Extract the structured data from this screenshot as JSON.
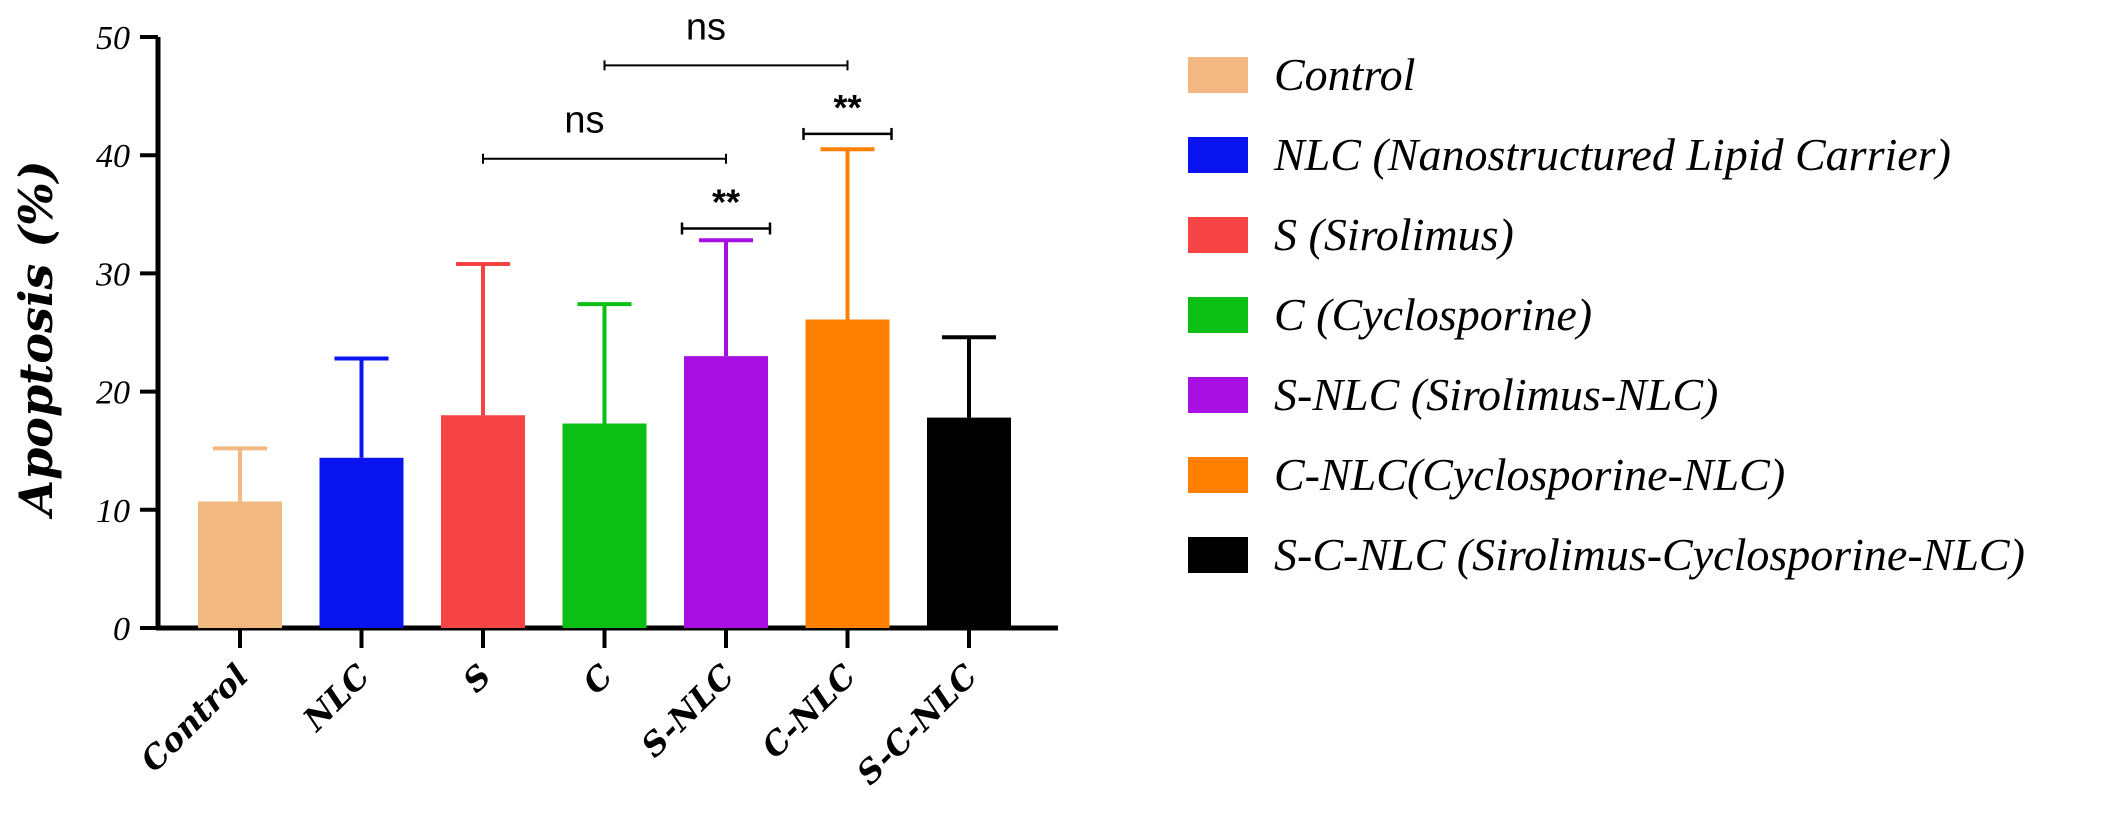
{
  "chart_data": {
    "type": "bar",
    "ylabel": "Apoptosis (%)",
    "xlabel": "",
    "ylim": [
      0,
      50
    ],
    "yticks": [
      0,
      10,
      20,
      30,
      40,
      50
    ],
    "categories": [
      "Control",
      "NLC",
      "S",
      "C",
      "S-NLC",
      "C-NLC",
      "S-C-NLC"
    ],
    "values": [
      10.7,
      14.4,
      18.0,
      17.3,
      23.0,
      26.1,
      17.8
    ],
    "error_upper": [
      15.2,
      22.8,
      30.8,
      27.4,
      32.8,
      40.5,
      24.6
    ],
    "colors": [
      "#F1B882",
      "#0A14F0",
      "#F64444",
      "#0BBF14",
      "#A80FE3",
      "#FF8000",
      "#000000"
    ],
    "legend": {
      "placement": "right",
      "entries": [
        "Control",
        "NLC (Nanostructured Lipid Carrier)",
        "S (Sirolimus)",
        "C (Cyclosporine)",
        "S-NLC (Sirolimus-NLC)",
        "C-NLC(Cyclosporine-NLC)",
        "S-C-NLC (Sirolimus-Cyclosporine-NLC)"
      ]
    },
    "annotations": [
      {
        "from": "S",
        "to": "S-NLC",
        "label": "ns",
        "y": 39.7
      },
      {
        "from": "C",
        "to": "C-NLC",
        "label": "ns",
        "y": 47.6
      },
      {
        "from": "S-NLC",
        "to": "S-NLC",
        "label": "**",
        "y": 33.8,
        "bracket": "cap"
      },
      {
        "from": "C-NLC",
        "to": "C-NLC",
        "label": "**",
        "y": 41.8,
        "bracket": "cap"
      }
    ],
    "grid": false
  }
}
